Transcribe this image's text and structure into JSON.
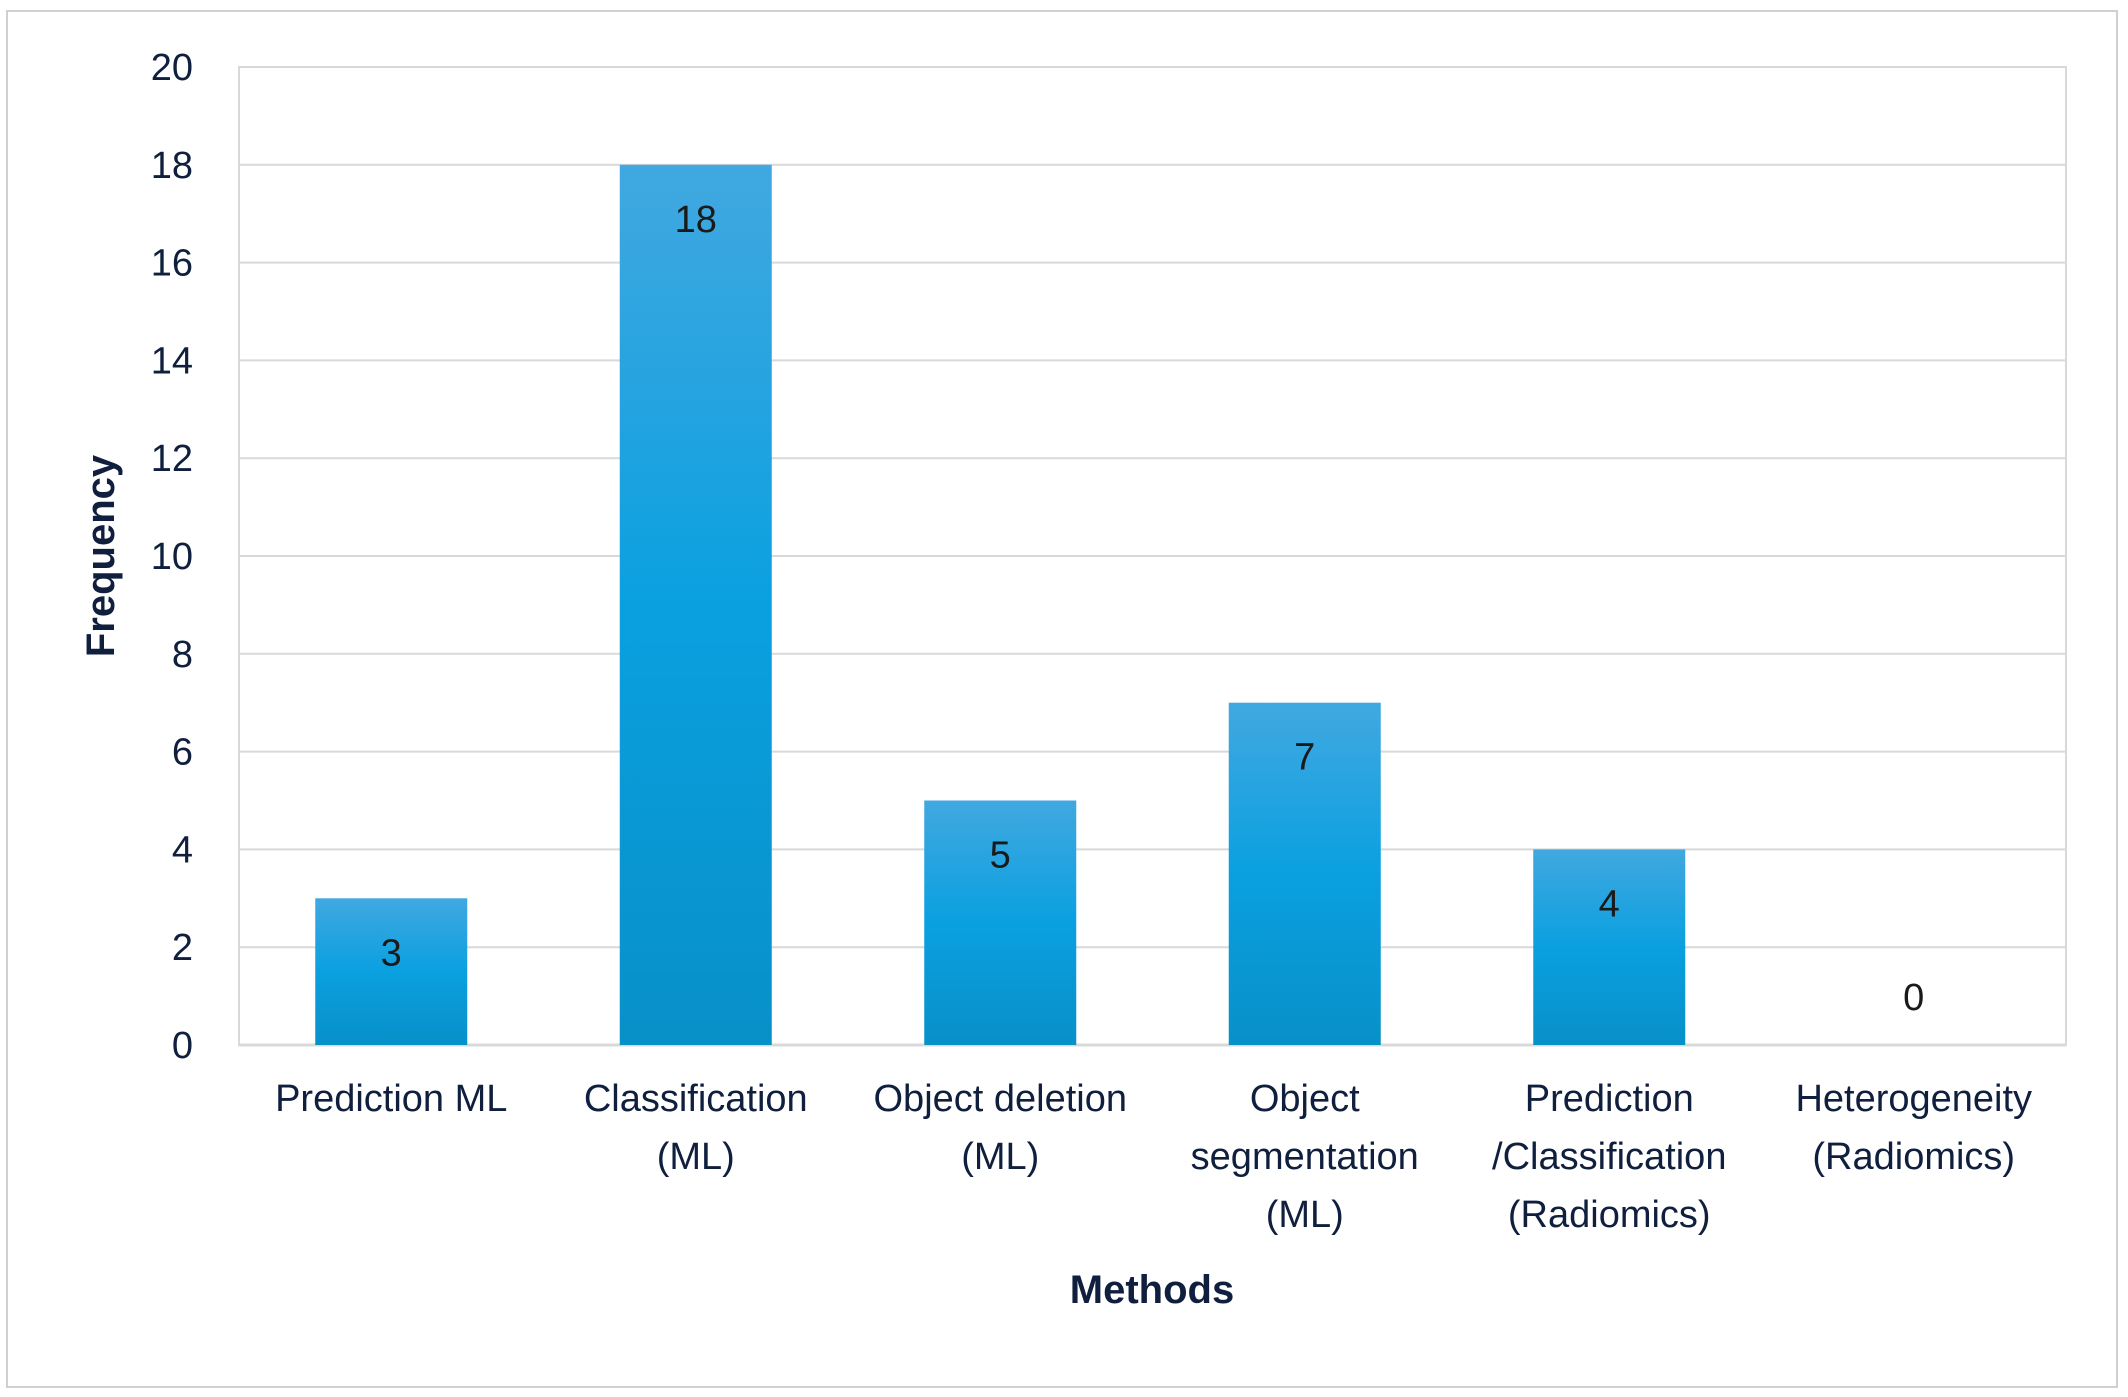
{
  "chart_data": {
    "type": "bar",
    "categories": [
      [
        "Prediction ML"
      ],
      [
        "Classification",
        "(ML)"
      ],
      [
        "Object deletion",
        "(ML)"
      ],
      [
        "Object",
        "segmentation",
        "(ML)"
      ],
      [
        "Prediction",
        "/Classification",
        "(Radiomics)"
      ],
      [
        "Heterogeneity",
        "(Radiomics)"
      ]
    ],
    "values": [
      3,
      18,
      5,
      7,
      4,
      0
    ],
    "data_labels": [
      "3",
      "18",
      "5",
      "7",
      "4",
      "0"
    ],
    "title": "",
    "xlabel": "Methods",
    "ylabel": "Frequency",
    "ylim": [
      0,
      20
    ],
    "yticks": [
      0,
      2,
      4,
      6,
      8,
      10,
      12,
      14,
      16,
      18,
      20
    ],
    "grid": true,
    "legend": "none",
    "colors": {
      "bar_top": "#41a8e0",
      "bar_mid": "#0aa0e0",
      "bar_bottom": "#0890c8",
      "grid": "#d9d9d9",
      "text": "#0f1f3d"
    }
  }
}
